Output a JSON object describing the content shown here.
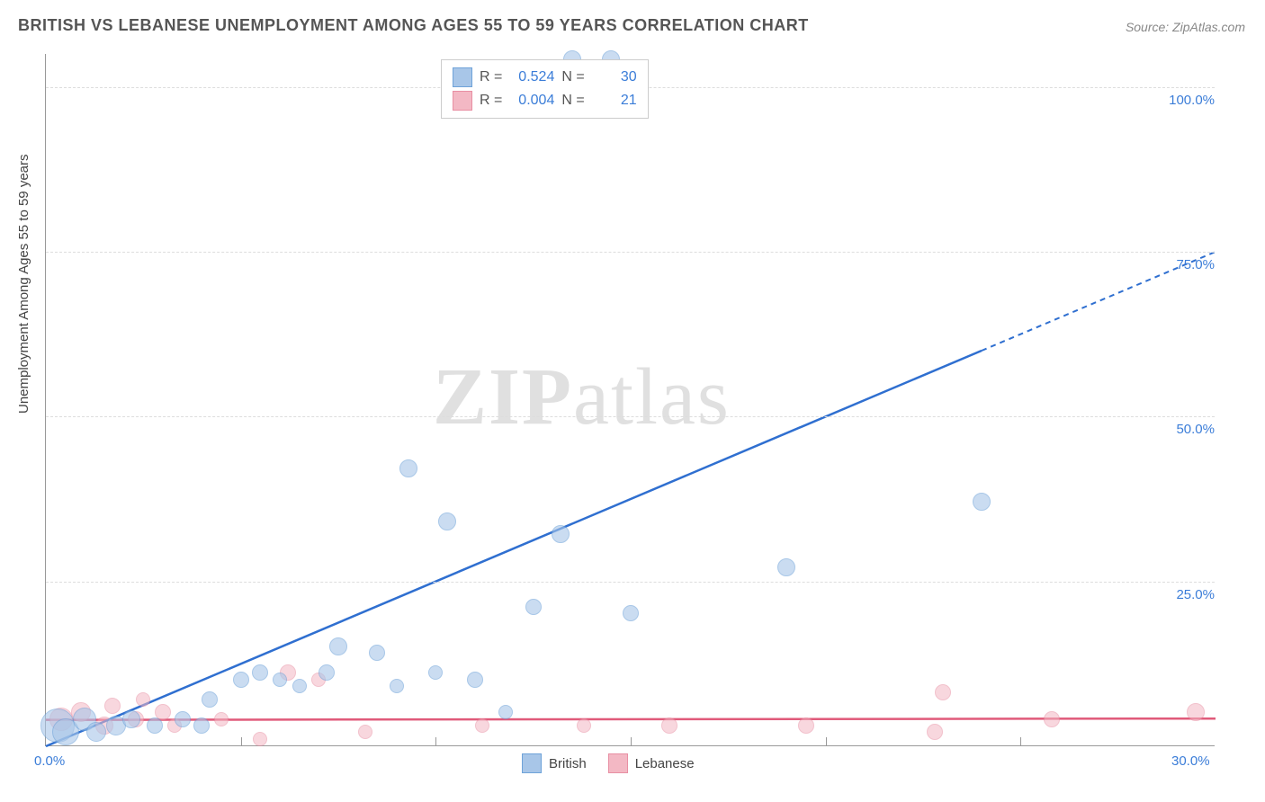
{
  "title": "BRITISH VS LEBANESE UNEMPLOYMENT AMONG AGES 55 TO 59 YEARS CORRELATION CHART",
  "source": "Source: ZipAtlas.com",
  "y_axis_label": "Unemployment Among Ages 55 to 59 years",
  "watermark": {
    "bold": "ZIP",
    "rest": "atlas"
  },
  "chart": {
    "type": "scatter",
    "background_color": "#ffffff",
    "grid_color": "#dddddd",
    "axis_color": "#999999",
    "xlim": [
      0,
      30
    ],
    "ylim": [
      0,
      105
    ],
    "y_ticks": [
      25,
      50,
      75,
      100
    ],
    "y_tick_labels": [
      "25.0%",
      "50.0%",
      "75.0%",
      "100.0%"
    ],
    "x_ticks_minor": [
      5,
      10,
      15,
      20,
      25
    ],
    "x_label_min": "0.0%",
    "x_label_max": "30.0%",
    "tick_label_color": "#3b7dd8",
    "tick_label_fontsize": 15
  },
  "series": {
    "british": {
      "label": "British",
      "fill": "#a8c6e8",
      "stroke": "#6fa3d9",
      "line_color": "#2f6fd0",
      "opacity": 0.6,
      "R_label": "R =",
      "R": "0.524",
      "N_label": "N =",
      "N": "30",
      "trend": {
        "x1": 0,
        "y1": 0,
        "x2_solid": 24,
        "y2_solid": 60,
        "x2_dash": 30,
        "y2_dash": 75
      },
      "points": [
        {
          "x": 0.3,
          "y": 3,
          "r": 18
        },
        {
          "x": 0.5,
          "y": 2,
          "r": 14
        },
        {
          "x": 1.0,
          "y": 4,
          "r": 12
        },
        {
          "x": 1.3,
          "y": 2,
          "r": 10
        },
        {
          "x": 1.8,
          "y": 3,
          "r": 10
        },
        {
          "x": 2.2,
          "y": 4,
          "r": 9
        },
        {
          "x": 2.8,
          "y": 3,
          "r": 8
        },
        {
          "x": 3.5,
          "y": 4,
          "r": 8
        },
        {
          "x": 4.0,
          "y": 3,
          "r": 8
        },
        {
          "x": 4.2,
          "y": 7,
          "r": 8
        },
        {
          "x": 5.0,
          "y": 10,
          "r": 8
        },
        {
          "x": 5.5,
          "y": 11,
          "r": 8
        },
        {
          "x": 6.0,
          "y": 10,
          "r": 7
        },
        {
          "x": 6.5,
          "y": 9,
          "r": 7
        },
        {
          "x": 7.2,
          "y": 11,
          "r": 8
        },
        {
          "x": 7.5,
          "y": 15,
          "r": 9
        },
        {
          "x": 8.5,
          "y": 14,
          "r": 8
        },
        {
          "x": 9.0,
          "y": 9,
          "r": 7
        },
        {
          "x": 9.3,
          "y": 42,
          "r": 9
        },
        {
          "x": 10.0,
          "y": 11,
          "r": 7
        },
        {
          "x": 10.3,
          "y": 34,
          "r": 9
        },
        {
          "x": 11.0,
          "y": 10,
          "r": 8
        },
        {
          "x": 11.8,
          "y": 5,
          "r": 7
        },
        {
          "x": 12.5,
          "y": 21,
          "r": 8
        },
        {
          "x": 13.2,
          "y": 32,
          "r": 9
        },
        {
          "x": 13.5,
          "y": 104,
          "r": 9
        },
        {
          "x": 15.0,
          "y": 20,
          "r": 8
        },
        {
          "x": 14.5,
          "y": 104,
          "r": 9
        },
        {
          "x": 19.0,
          "y": 27,
          "r": 9
        },
        {
          "x": 24.0,
          "y": 37,
          "r": 9
        }
      ]
    },
    "lebanese": {
      "label": "Lebanese",
      "fill": "#f3b8c4",
      "stroke": "#e88fa3",
      "line_color": "#e05a7a",
      "opacity": 0.55,
      "R_label": "R =",
      "R": "0.004",
      "N_label": "N =",
      "N": "21",
      "trend": {
        "x1": 0,
        "y1": 4,
        "x2_solid": 30,
        "y2_solid": 4.2,
        "x2_dash": 30,
        "y2_dash": 4.2
      },
      "points": [
        {
          "x": 0.4,
          "y": 4,
          "r": 12
        },
        {
          "x": 0.9,
          "y": 5,
          "r": 10
        },
        {
          "x": 1.5,
          "y": 3,
          "r": 9
        },
        {
          "x": 1.7,
          "y": 6,
          "r": 8
        },
        {
          "x": 2.3,
          "y": 4,
          "r": 8
        },
        {
          "x": 2.5,
          "y": 7,
          "r": 7
        },
        {
          "x": 3.0,
          "y": 5,
          "r": 8
        },
        {
          "x": 3.3,
          "y": 3,
          "r": 7
        },
        {
          "x": 4.5,
          "y": 4,
          "r": 7
        },
        {
          "x": 5.5,
          "y": 1,
          "r": 7
        },
        {
          "x": 6.2,
          "y": 11,
          "r": 8
        },
        {
          "x": 7.0,
          "y": 10,
          "r": 7
        },
        {
          "x": 8.2,
          "y": 2,
          "r": 7
        },
        {
          "x": 11.2,
          "y": 3,
          "r": 7
        },
        {
          "x": 13.8,
          "y": 3,
          "r": 7
        },
        {
          "x": 16.0,
          "y": 3,
          "r": 8
        },
        {
          "x": 19.5,
          "y": 3,
          "r": 8
        },
        {
          "x": 22.8,
          "y": 2,
          "r": 8
        },
        {
          "x": 23.0,
          "y": 8,
          "r": 8
        },
        {
          "x": 25.8,
          "y": 4,
          "r": 8
        },
        {
          "x": 29.5,
          "y": 5,
          "r": 9
        }
      ]
    }
  },
  "legend_bottom": {
    "items": [
      "british",
      "lebanese"
    ]
  }
}
